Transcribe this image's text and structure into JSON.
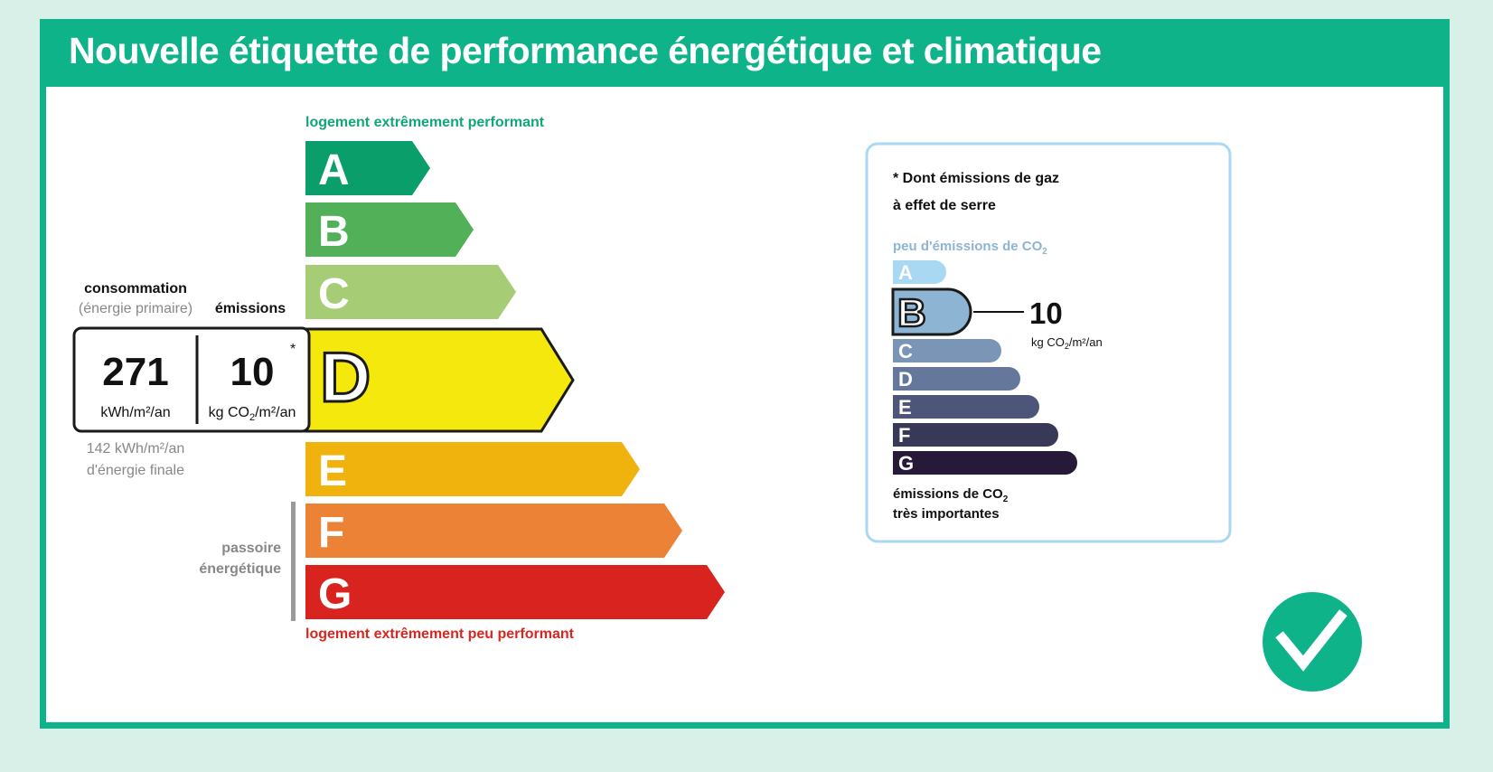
{
  "title": "Nouvelle étiquette de performance énergétique et climatique",
  "dpe": {
    "top_label": "logement extrêmement performant",
    "bottom_label": "logement extrêmement peu performant",
    "classes": [
      {
        "letter": "A",
        "color": "#0a9e6a"
      },
      {
        "letter": "B",
        "color": "#52b158"
      },
      {
        "letter": "C",
        "color": "#a6cd76"
      },
      {
        "letter": "D",
        "color": "#f4e80c"
      },
      {
        "letter": "E",
        "color": "#f0b30e"
      },
      {
        "letter": "F",
        "color": "#ec8236"
      },
      {
        "letter": "G",
        "color": "#d9231f"
      }
    ],
    "selected_class": "D",
    "consumption_label": "consommation",
    "consumption_sub": "(énergie primaire)",
    "emissions_label": "émissions",
    "consumption_value": "271",
    "consumption_unit": "kWh/m²/an",
    "emissions_value": "10",
    "emissions_unit_prefix": "kg CO",
    "emissions_unit_sub": "2",
    "emissions_unit_suffix": "/m²/an",
    "asterisk": "*",
    "final_energy_line1": "142 kWh/m²/an",
    "final_energy_line2": "d'énergie finale",
    "passoire_line1": "passoire",
    "passoire_line2": "énergétique",
    "passoire_classes": [
      "F",
      "G"
    ]
  },
  "ges": {
    "heading_line1": "* Dont émissions de gaz",
    "heading_line2": "à effet de serre",
    "top_label_prefix": "peu d'émissions de CO",
    "top_label_sub": "2",
    "classes": [
      {
        "letter": "A",
        "color": "#a8d8f2"
      },
      {
        "letter": "B",
        "color": "#8db4d3"
      },
      {
        "letter": "C",
        "color": "#7a95b5"
      },
      {
        "letter": "D",
        "color": "#65789b"
      },
      {
        "letter": "E",
        "color": "#4d5678"
      },
      {
        "letter": "F",
        "color": "#383858"
      },
      {
        "letter": "G",
        "color": "#261a38"
      }
    ],
    "selected_class": "B",
    "value": "10",
    "unit_prefix": "kg CO",
    "unit_sub": "2",
    "unit_suffix": "/m²/an",
    "bottom_label_line1_prefix": "émissions de CO",
    "bottom_label_line1_sub": "2",
    "bottom_label_line2": "très importantes"
  },
  "checkmark": "check-icon",
  "colors": {
    "frame": "#0fb38a",
    "background": "#d9f0e8",
    "ges_border": "#a8d8f2",
    "passoire_bar": "#9a9a9a"
  }
}
